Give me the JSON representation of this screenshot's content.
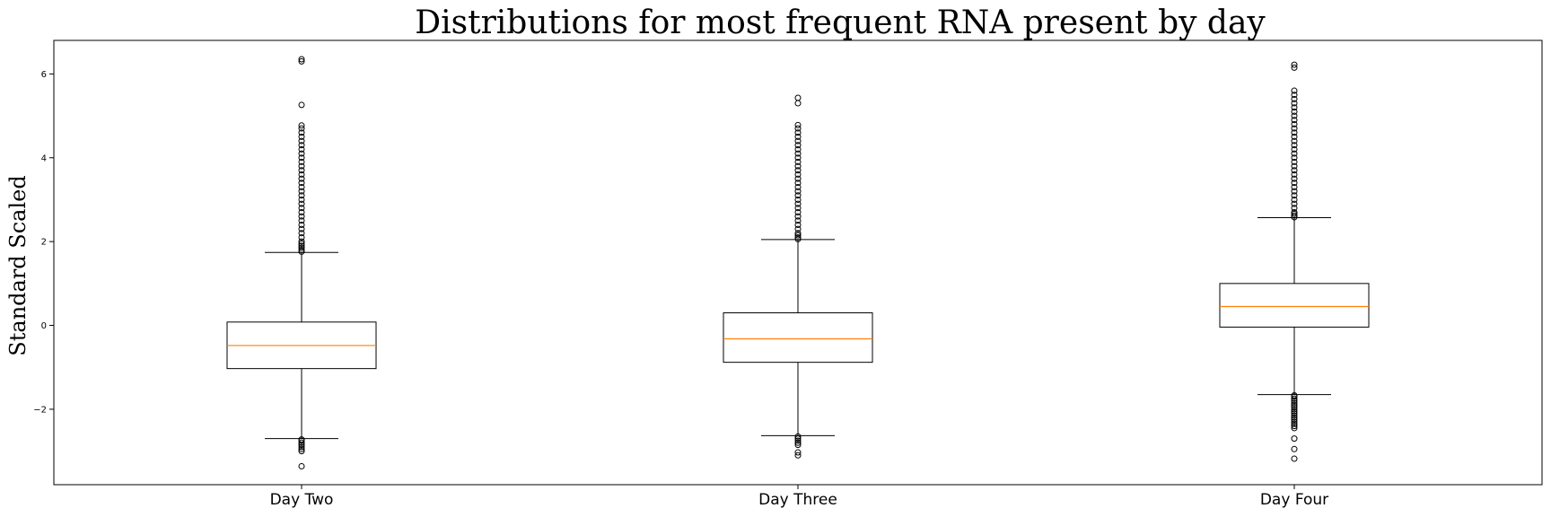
{
  "chart_data": {
    "type": "box",
    "title": "Distributions for most frequent RNA present by day",
    "xlabel": "",
    "ylabel": "Standard Scaled",
    "ylim": [
      -3.8,
      6.8
    ],
    "yticks": [
      -2,
      0,
      2,
      4,
      6
    ],
    "ytick_labels": [
      "−2",
      "0",
      "2",
      "4",
      "6"
    ],
    "categories": [
      "Day Two",
      "Day Three",
      "Day Four"
    ],
    "grid": false,
    "legend": "none",
    "colors": {
      "box": "#000000",
      "median": "#ff7f0e",
      "background": "#ffffff"
    },
    "boxes": [
      {
        "label": "Day Two",
        "whisker_low": -2.7,
        "q1": -1.03,
        "median": -0.48,
        "q3": 0.08,
        "whisker_high": 1.74,
        "outliers_high": [
          1.76,
          1.8,
          1.85,
          1.9,
          1.95,
          2.0,
          2.1,
          2.2,
          2.3,
          2.4,
          2.5,
          2.6,
          2.7,
          2.8,
          2.9,
          3.0,
          3.1,
          3.2,
          3.3,
          3.4,
          3.5,
          3.6,
          3.7,
          3.8,
          3.9,
          4.0,
          4.1,
          4.2,
          4.3,
          4.4,
          4.5,
          4.6,
          4.7,
          4.77,
          5.26,
          6.3,
          6.35
        ],
        "outliers_low": [
          -2.72,
          -2.75,
          -2.8,
          -2.85,
          -2.9,
          -2.95,
          -3.0,
          -3.36
        ]
      },
      {
        "label": "Day Three",
        "whisker_low": -2.63,
        "q1": -0.88,
        "median": -0.32,
        "q3": 0.3,
        "whisker_high": 2.05,
        "outliers_high": [
          2.06,
          2.1,
          2.15,
          2.2,
          2.3,
          2.4,
          2.5,
          2.6,
          2.7,
          2.8,
          2.9,
          3.0,
          3.1,
          3.2,
          3.3,
          3.4,
          3.5,
          3.6,
          3.7,
          3.8,
          3.9,
          4.0,
          4.1,
          4.2,
          4.3,
          4.4,
          4.5,
          4.6,
          4.7,
          4.78,
          5.3,
          5.43
        ],
        "outliers_low": [
          -2.65,
          -2.7,
          -2.75,
          -2.8,
          -2.85,
          -3.03,
          -3.1
        ]
      },
      {
        "label": "Day Four",
        "whisker_low": -1.65,
        "q1": -0.04,
        "median": 0.45,
        "q3": 1.0,
        "whisker_high": 2.57,
        "outliers_high": [
          2.58,
          2.62,
          2.66,
          2.7,
          2.8,
          2.9,
          3.0,
          3.1,
          3.2,
          3.3,
          3.4,
          3.5,
          3.6,
          3.7,
          3.8,
          3.9,
          4.0,
          4.1,
          4.2,
          4.3,
          4.4,
          4.5,
          4.6,
          4.7,
          4.8,
          4.9,
          5.0,
          5.1,
          5.2,
          5.3,
          5.4,
          5.5,
          5.6,
          6.15,
          6.22
        ],
        "outliers_low": [
          -1.67,
          -1.7,
          -1.75,
          -1.8,
          -1.85,
          -1.9,
          -1.95,
          -2.0,
          -2.05,
          -2.1,
          -2.15,
          -2.2,
          -2.25,
          -2.3,
          -2.35,
          -2.4,
          -2.45,
          -2.7,
          -2.95,
          -3.18
        ]
      }
    ]
  }
}
